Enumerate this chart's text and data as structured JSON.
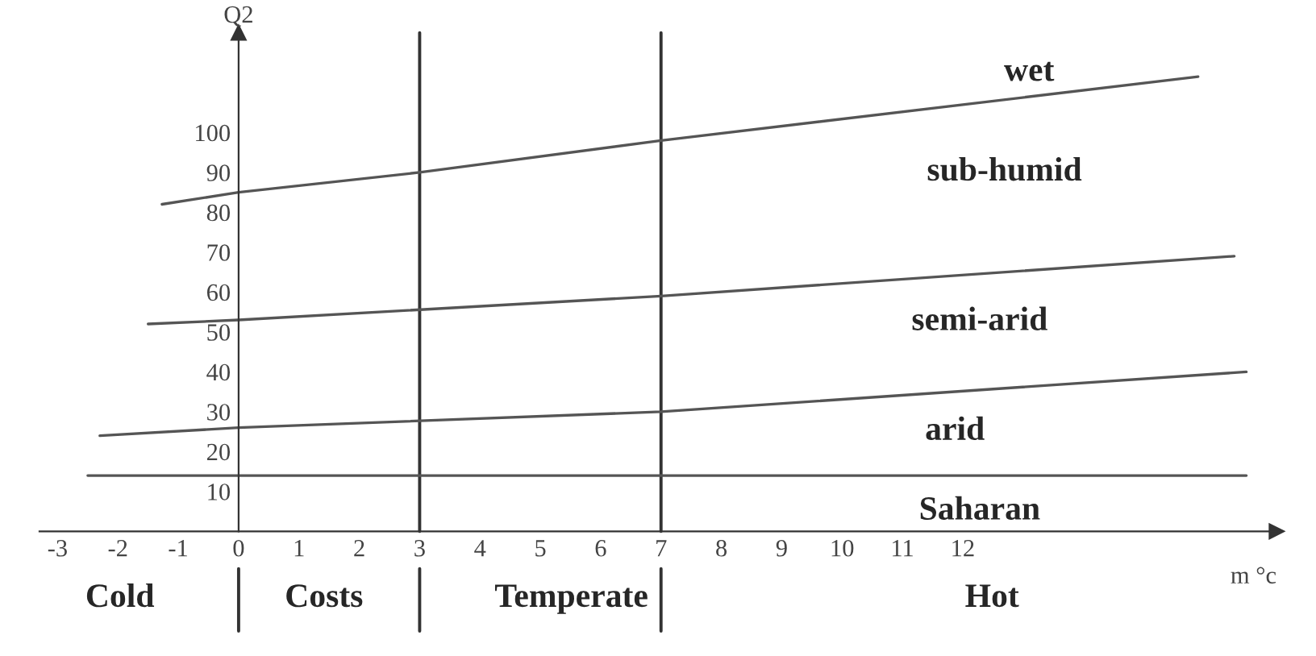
{
  "chart_data": {
    "type": "line",
    "xlabel": "m °c",
    "ylabel": "Q2",
    "series": [
      {
        "color": "#555555",
        "x": [
          -1.27,
          0,
          3,
          7,
          15.9
        ],
        "values": [
          82,
          85,
          90,
          98,
          114
        ]
      },
      {
        "color": "#555555",
        "x": [
          -1.5,
          0,
          7,
          16.5
        ],
        "values": [
          52,
          53,
          59,
          69
        ]
      },
      {
        "color": "#555555",
        "x": [
          -2.3,
          0,
          7,
          16.7
        ],
        "values": [
          24,
          26,
          30,
          40
        ]
      },
      {
        "color": "#555555",
        "x": [
          -2.5,
          16.7
        ],
        "values": [
          14,
          14
        ]
      }
    ],
    "xlim": [
      -3.3,
      17.2
    ],
    "ylim": [
      0,
      125
    ],
    "xticks": [
      -3,
      -2,
      -1,
      0,
      1,
      2,
      3,
      4,
      5,
      6,
      7,
      8,
      9,
      10,
      11,
      12
    ],
    "yticks": [
      10,
      20,
      30,
      40,
      50,
      60,
      70,
      80,
      90,
      100
    ],
    "ref_lines": [
      {
        "axis": "x",
        "value": 3,
        "color": "#333333"
      },
      {
        "axis": "x",
        "value": 7,
        "color": "#333333"
      }
    ],
    "annotations": [
      "wet",
      "sub-humid",
      "semi-arid",
      "arid",
      "Saharan",
      "Cold",
      "Costs",
      "Temperate",
      "Hot"
    ],
    "grid": false,
    "legend": false,
    "marker": "none",
    "line_style": "solid"
  }
}
